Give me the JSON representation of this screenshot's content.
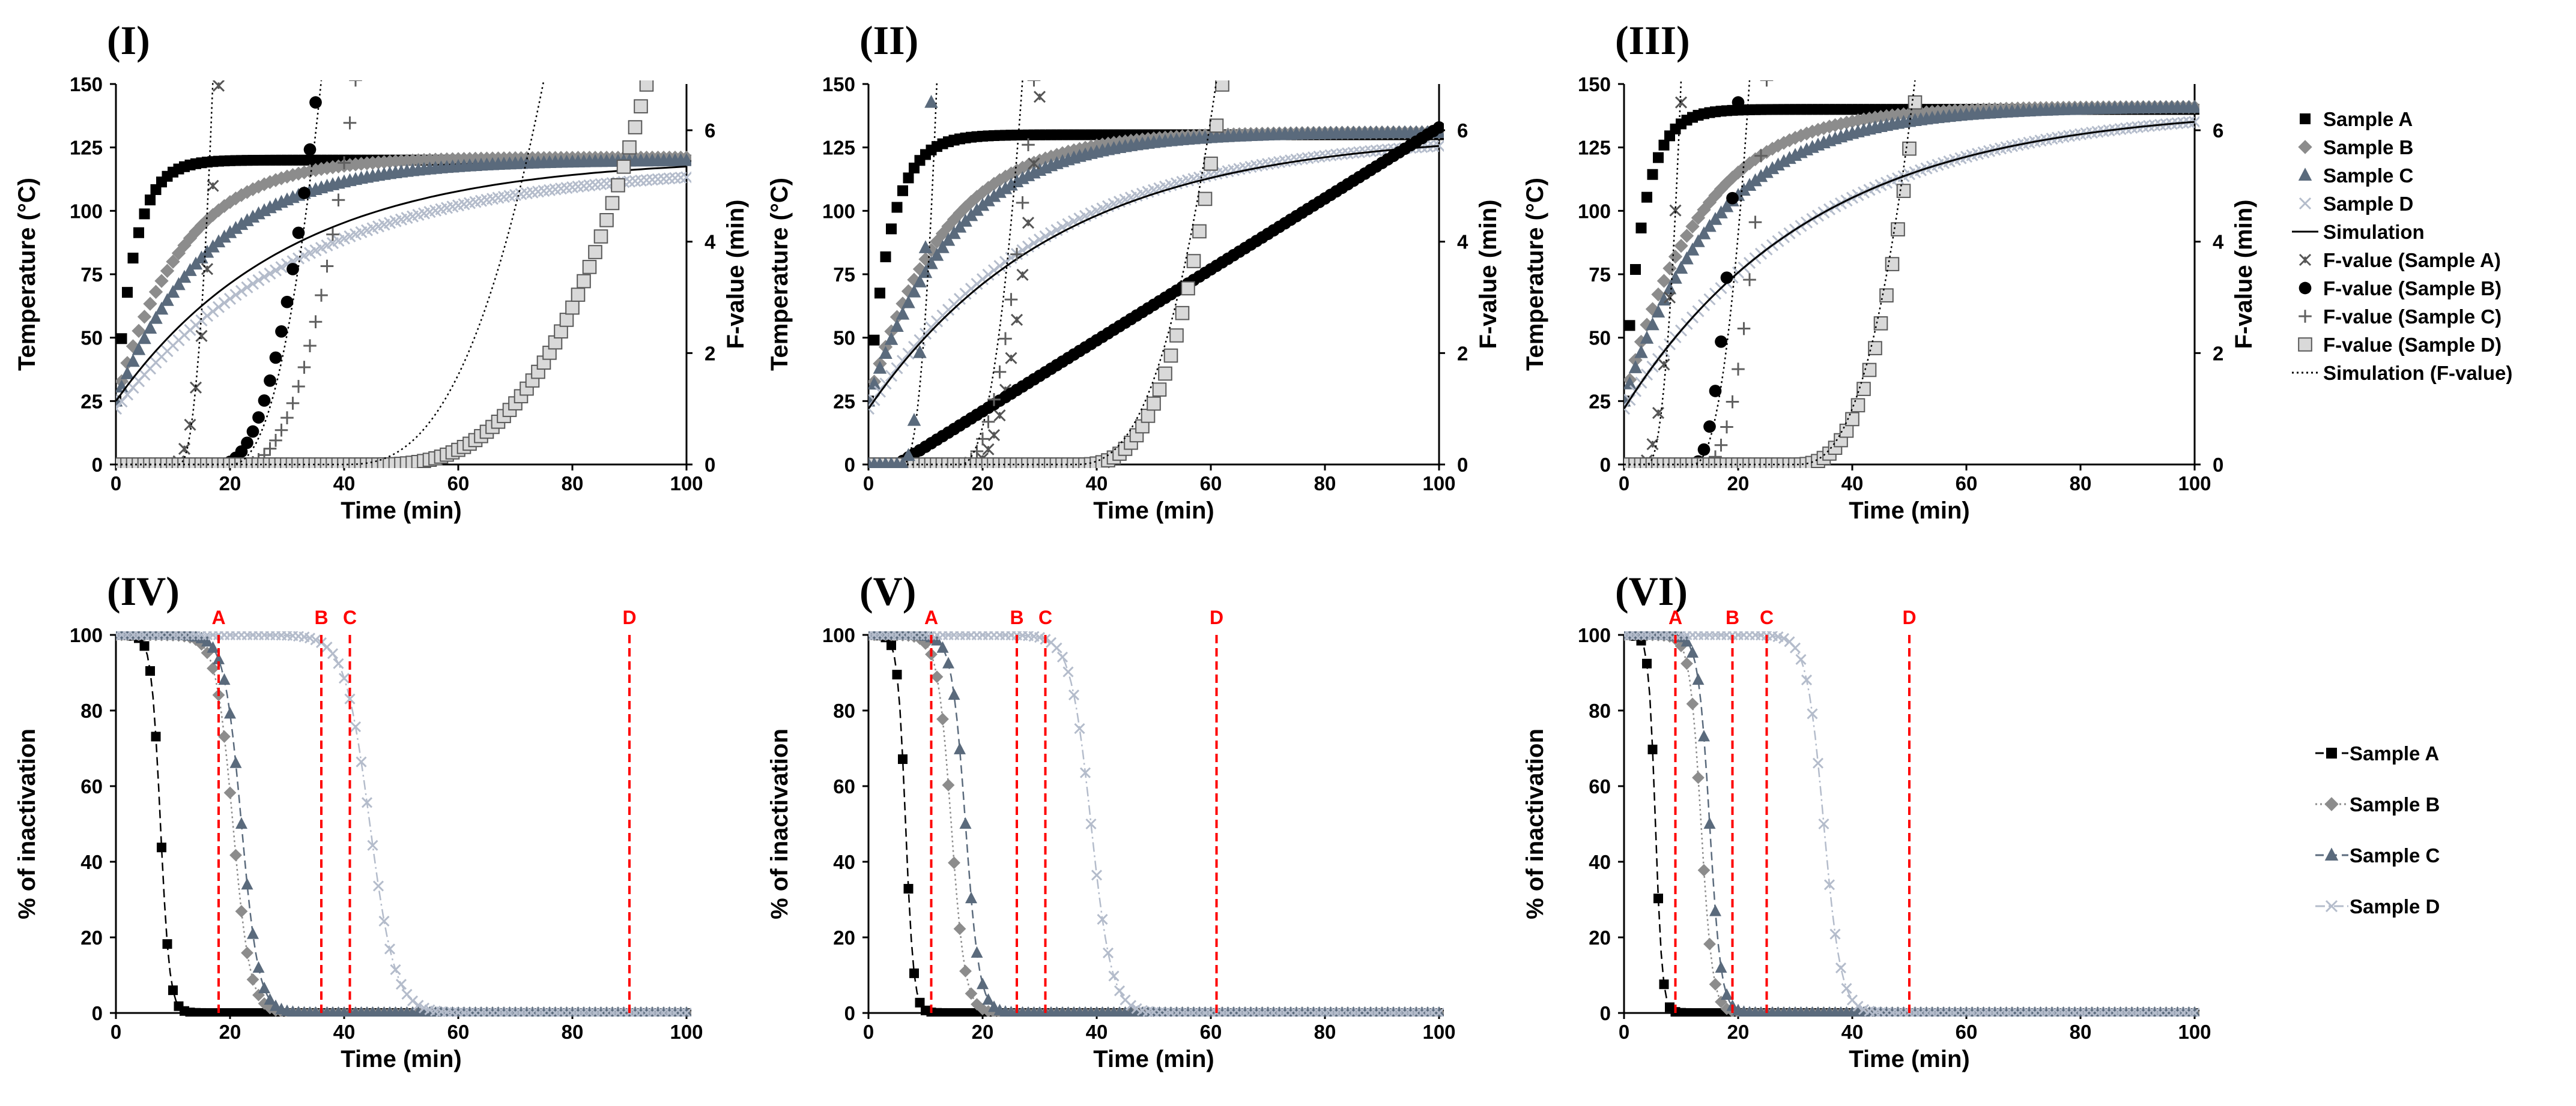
{
  "chart_data": [
    {
      "panel": "(I)",
      "type": "line",
      "xlabel": "Time (min)",
      "ylabel": "Temperature (°C)",
      "y2label": "F-value (min)",
      "xlim": [
        0,
        100
      ],
      "ylim": [
        0,
        150
      ],
      "y2lim": [
        0,
        6.83
      ],
      "x_ticks": [
        "0",
        "20",
        "40",
        "60",
        "80",
        "100"
      ],
      "y_ticks": [
        "0",
        "25",
        "50",
        "75",
        "100",
        "125",
        "150"
      ],
      "y2_ticks": [
        "0",
        "2",
        "4",
        "6"
      ],
      "series": [
        {
          "name": "Sample A",
          "axis": "left",
          "marker": "square-filled",
          "color": "#000000",
          "model": "heat",
          "T0": 25,
          "Tinf": 120,
          "k": 0.3
        },
        {
          "name": "Sample B",
          "axis": "left",
          "marker": "diamond",
          "color": "#8c8c8c",
          "model": "heat",
          "T0": 25,
          "Tinf": 121,
          "k": 0.085
        },
        {
          "name": "Sample C",
          "axis": "left",
          "marker": "triangle",
          "color": "#5a6a7c",
          "model": "heat",
          "T0": 25,
          "Tinf": 120,
          "k": 0.06
        },
        {
          "name": "Sample D",
          "axis": "left",
          "marker": "x",
          "color": "#b0b8c8",
          "model": "heat",
          "T0": 22,
          "Tinf": 118,
          "k": 0.03
        },
        {
          "name": "Simulation",
          "axis": "left",
          "line": "solid",
          "color": "#000000",
          "model": "heat",
          "T0": 25,
          "Tinf": 121,
          "k": 0.033
        },
        {
          "name": "F-value (Sample A)",
          "axis": "right",
          "marker": "x-star",
          "color": "#555555",
          "model": "fvalue",
          "t0": 10,
          "t1": 18,
          "p": 2.3,
          "Fend": 6.8
        },
        {
          "name": "F-value (Sample B)",
          "axis": "right",
          "marker": "circle-filled",
          "color": "#000000",
          "model": "fvalue",
          "t0": 18,
          "t1": 35,
          "p": 2.3,
          "Fend": 6.5
        },
        {
          "name": "F-value (Sample C)",
          "axis": "right",
          "marker": "plus",
          "color": "#606060",
          "model": "fvalue",
          "t0": 22,
          "t1": 42,
          "p": 2.3,
          "Fend": 6.9
        },
        {
          "name": "F-value (Sample D)",
          "axis": "right",
          "marker": "square-open",
          "color": "#707070",
          "model": "fvalue",
          "t0": 45,
          "t1": 93,
          "p": 2.8,
          "Fend": 6.82
        },
        {
          "name": "Simulation (F-value)",
          "axis": "right",
          "line": "dotted",
          "color": "#000000",
          "model": "fvalue",
          "t0": 40,
          "t1": 75,
          "p": 2.6,
          "Fend": 6.9,
          "lines": [
            {
              "t0": 11,
              "t1": 17,
              "p": 2.3,
              "Fend": 6.9
            },
            {
              "t0": 20,
              "t1": 36,
              "p": 2.3,
              "Fend": 6.9
            }
          ]
        }
      ]
    },
    {
      "panel": "(II)",
      "type": "line",
      "xlabel": "Time (min)",
      "ylabel": "Temperature (°C)",
      "y2label": "F-value (min)",
      "xlim": [
        0,
        100
      ],
      "ylim": [
        0,
        150
      ],
      "y2lim": [
        0,
        6.83
      ],
      "x_ticks": [
        "0",
        "20",
        "40",
        "60",
        "80",
        "100"
      ],
      "y_ticks": [
        "0",
        "25",
        "50",
        "75",
        "100",
        "125",
        "150"
      ],
      "y2_ticks": [
        "0",
        "2",
        "4",
        "6"
      ],
      "series": [
        {
          "name": "Sample A",
          "axis": "left",
          "model": "heat",
          "T0": 25,
          "Tinf": 130,
          "k": 0.26
        },
        {
          "name": "Sample B",
          "axis": "left",
          "model": "heat",
          "T0": 25,
          "Tinf": 131,
          "k": 0.075
        },
        {
          "name": "Sample C",
          "axis": "left",
          "model": "heat",
          "T0": 25,
          "Tinf": 131,
          "k": 0.065
        },
        {
          "name": "Sample D",
          "axis": "left",
          "model": "heat",
          "T0": 22,
          "Tinf": 130,
          "k": 0.032
        },
        {
          "name": "Simulation",
          "axis": "left",
          "model": "heat",
          "T0": 22,
          "Tinf": 131,
          "k": 0.03
        },
        {
          "name": "F-value (Sample A)",
          "axis": "right",
          "model": "fvalue",
          "t0": 18,
          "t1": 30,
          "p": 2.3,
          "Fend": 6.6
        },
        {
          "name": "F-value (Sample B)",
          "axis": "right",
          "model": "fvalue",
          "t0": 5,
          "t1": 100,
          "p": 1,
          "Fend": 6.05
        },
        {
          "name": "F-value (Sample C)",
          "axis": "right",
          "model": "fvalue",
          "t0": 16,
          "t1": 29,
          "p": 2.3,
          "Fend": 6.9
        },
        {
          "name": "F-value (Sample D)",
          "axis": "right",
          "model": "fvalue",
          "t0": 37,
          "t1": 62,
          "p": 2.8,
          "Fend": 6.82
        },
        {
          "name": "Simulation (F-value)",
          "axis": "right",
          "model": "fvalue",
          "t0": 36,
          "t1": 61,
          "p": 2.6,
          "Fend": 6.9,
          "lines": [
            {
              "t0": 6,
              "t1": 12,
              "p": 2.3,
              "Fend": 6.9
            },
            {
              "t0": 16,
              "t1": 27,
              "p": 2.3,
              "Fend": 6.9
            }
          ]
        }
      ],
      "extra_marks": [
        {
          "name": "F-value (Sample A) early",
          "marker": "triangle",
          "color": "#5a6a7c",
          "t0": 6,
          "t1": 11,
          "p": 2.3,
          "Fend": 6.5
        }
      ]
    },
    {
      "panel": "(III)",
      "type": "line",
      "xlabel": "Time (min)",
      "ylabel": "Temperature (°C)",
      "y2label": "F-value (min)",
      "xlim": [
        0,
        100
      ],
      "ylim": [
        0,
        150
      ],
      "y2lim": [
        0,
        6.83
      ],
      "x_ticks": [
        "0",
        "20",
        "40",
        "60",
        "80",
        "100"
      ],
      "y_ticks": [
        "0",
        "25",
        "50",
        "75",
        "100",
        "125",
        "150"
      ],
      "y2_ticks": [
        "0",
        "2",
        "4",
        "6"
      ],
      "series": [
        {
          "name": "Sample A",
          "axis": "left",
          "model": "heat",
          "T0": 25,
          "Tinf": 140,
          "k": 0.3
        },
        {
          "name": "Sample B",
          "axis": "left",
          "model": "heat",
          "T0": 25,
          "Tinf": 141,
          "k": 0.075
        },
        {
          "name": "Sample C",
          "axis": "left",
          "model": "heat",
          "T0": 25,
          "Tinf": 141,
          "k": 0.06
        },
        {
          "name": "Sample D",
          "axis": "left",
          "model": "heat",
          "T0": 22,
          "Tinf": 141,
          "k": 0.03
        },
        {
          "name": "Simulation",
          "axis": "left",
          "model": "heat",
          "T0": 22,
          "Tinf": 141,
          "k": 0.03
        },
        {
          "name": "F-value (Sample A)",
          "axis": "right",
          "model": "fvalue",
          "t0": 3,
          "t1": 10,
          "p": 2.3,
          "Fend": 6.5
        },
        {
          "name": "F-value (Sample B)",
          "axis": "right",
          "model": "fvalue",
          "t0": 12,
          "t1": 20,
          "p": 2.3,
          "Fend": 6.5
        },
        {
          "name": "F-value (Sample C)",
          "axis": "right",
          "model": "fvalue",
          "t0": 14,
          "t1": 25,
          "p": 2.3,
          "Fend": 6.9
        },
        {
          "name": "F-value (Sample D)",
          "axis": "right",
          "model": "fvalue",
          "t0": 30,
          "t1": 51,
          "p": 2.8,
          "Fend": 6.5
        },
        {
          "name": "Simulation (F-value)",
          "axis": "right",
          "model": "fvalue",
          "t0": 30,
          "t1": 51,
          "p": 2.6,
          "Fend": 6.9,
          "lines": [
            {
              "t0": 4,
              "t1": 10,
              "p": 2.3,
              "Fend": 6.9
            },
            {
              "t0": 12,
              "t1": 22,
              "p": 2.3,
              "Fend": 6.9
            }
          ]
        }
      ]
    },
    {
      "panel": "(IV)",
      "type": "line",
      "xlabel": "Time (min)",
      "ylabel": "% of inactivation",
      "xlim": [
        0,
        100
      ],
      "ylim": [
        0,
        100
      ],
      "x_ticks": [
        "0",
        "20",
        "40",
        "60",
        "80",
        "100"
      ],
      "y_ticks": [
        "0",
        "20",
        "40",
        "60",
        "80",
        "100"
      ],
      "series": [
        {
          "name": "Sample A",
          "marker": "square-filled",
          "color": "#000000",
          "line": "dashed",
          "model": "logistic",
          "t50": 7.8,
          "s": 0.8
        },
        {
          "name": "Sample B",
          "marker": "diamond",
          "color": "#8c8c8c",
          "line": "dotted",
          "model": "logistic",
          "t50": 20.5,
          "s": 1.5
        },
        {
          "name": "Sample C",
          "marker": "triangle",
          "color": "#5a6a7c",
          "line": "dashed",
          "model": "logistic",
          "t50": 22,
          "s": 1.5
        },
        {
          "name": "Sample D",
          "marker": "x",
          "color": "#b0b8c8",
          "line": "dashdot",
          "model": "logistic",
          "t50": 44.5,
          "s": 2.2
        }
      ],
      "markers": [
        {
          "label": "A",
          "x": 18
        },
        {
          "label": "B",
          "x": 36
        },
        {
          "label": "C",
          "x": 41
        },
        {
          "label": "D",
          "x": 90
        }
      ]
    },
    {
      "panel": "(V)",
      "type": "line",
      "xlabel": "Time (min)",
      "ylabel": "% of inactivation",
      "xlim": [
        0,
        100
      ],
      "ylim": [
        0,
        100
      ],
      "x_ticks": [
        "0",
        "20",
        "40",
        "60",
        "80",
        "100"
      ],
      "y_ticks": [
        "0",
        "20",
        "40",
        "60",
        "80",
        "100"
      ],
      "series": [
        {
          "name": "Sample A",
          "model": "logistic",
          "t50": 6.5,
          "s": 0.7
        },
        {
          "name": "Sample B",
          "model": "logistic",
          "t50": 14.5,
          "s": 1.2
        },
        {
          "name": "Sample C",
          "model": "logistic",
          "t50": 17,
          "s": 1.2
        },
        {
          "name": "Sample D",
          "model": "logistic",
          "t50": 39,
          "s": 1.8
        }
      ],
      "markers": [
        {
          "label": "A",
          "x": 11
        },
        {
          "label": "B",
          "x": 26
        },
        {
          "label": "C",
          "x": 31
        },
        {
          "label": "D",
          "x": 61
        }
      ]
    },
    {
      "panel": "(VI)",
      "type": "line",
      "xlabel": "Time (min)",
      "ylabel": "% of inactivation",
      "xlim": [
        0,
        100
      ],
      "ylim": [
        0,
        100
      ],
      "x_ticks": [
        "0",
        "20",
        "40",
        "60",
        "80",
        "100"
      ],
      "y_ticks": [
        "0",
        "20",
        "40",
        "60",
        "80",
        "100"
      ],
      "series": [
        {
          "name": "Sample A",
          "model": "logistic",
          "t50": 5.5,
          "s": 0.6
        },
        {
          "name": "Sample B",
          "model": "logistic",
          "t50": 13.5,
          "s": 1.0
        },
        {
          "name": "Sample C",
          "model": "logistic",
          "t50": 15,
          "s": 1.0
        },
        {
          "name": "Sample D",
          "model": "logistic",
          "t50": 35,
          "s": 1.5
        }
      ],
      "markers": [
        {
          "label": "A",
          "x": 9
        },
        {
          "label": "B",
          "x": 19
        },
        {
          "label": "C",
          "x": 25
        },
        {
          "label": "D",
          "x": 50
        }
      ]
    }
  ],
  "legend_top": [
    "Sample A",
    "Sample B",
    "Sample C",
    "Sample D",
    "Simulation",
    "F-value (Sample A)",
    "F-value (Sample B)",
    "F-value (Sample C)",
    "F-value (Sample D)",
    "Simulation (F-value)"
  ],
  "legend_bottom": [
    "Sample A",
    "Sample B",
    "Sample C",
    "Sample D"
  ],
  "red_line_color": "#ff0000"
}
